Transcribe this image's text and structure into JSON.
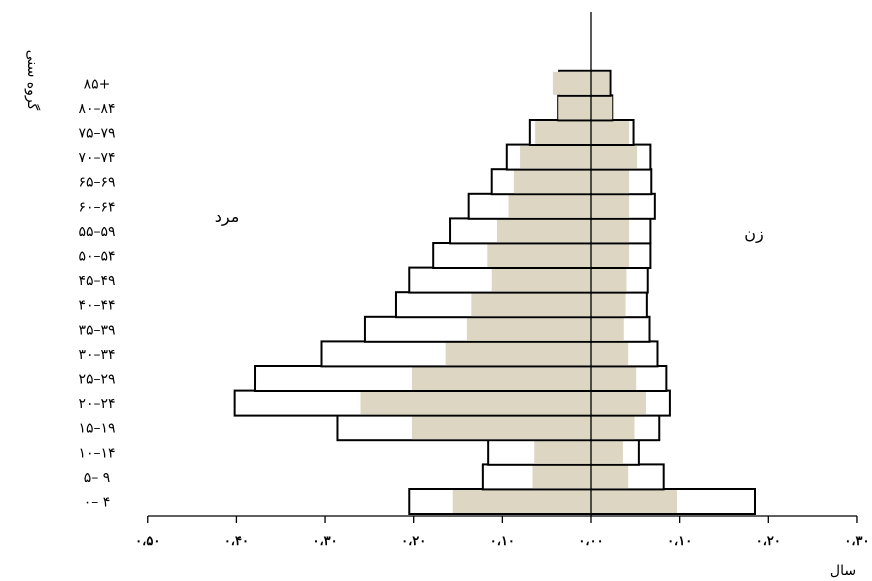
{
  "chart_data": {
    "type": "bar",
    "orientation": "horizontal",
    "xlabel": "سال",
    "ylabel": "گروه سنی",
    "annotations": {
      "left": "مرد",
      "right": "زن"
    },
    "xlim": [
      -0.5,
      0.3
    ],
    "x_ticks": [
      -0.5,
      -0.4,
      -0.3,
      -0.2,
      -0.1,
      0,
      0.1,
      0.2,
      0.3
    ],
    "x_tick_labels": [
      "۰،۵۰",
      "۰،۴۰",
      "۰،۳۰",
      "۰،۲۰",
      "۰،۱۰",
      "۰،۰۰",
      "۰،۱۰",
      "۰،۲۰",
      "۰،۳۰"
    ],
    "categories": [
      "۰– ۴",
      "۵– ۹",
      "۱۰–۱۴",
      "۱۵–۱۹",
      "۲۰–۲۴",
      "۲۵–۲۹",
      "۳۰–۳۴",
      "۳۵–۳۹",
      "۴۰–۴۴",
      "۴۵–۴۹",
      "۵۰–۵۴",
      "۵۵–۵۹",
      "۶۰–۶۴",
      "۶۵–۶۹",
      "۷۰–۷۴",
      "۷۵–۷۹",
      "۸۰–۸۴",
      "۸۵+"
    ],
    "series": [
      {
        "group": "outline",
        "male": [
          0.205,
          0.122,
          0.116,
          0.286,
          0.402,
          0.379,
          0.304,
          0.255,
          0.22,
          0.205,
          0.178,
          0.159,
          0.138,
          0.112,
          0.095,
          0.069,
          0.037,
          0.036
        ],
        "female": [
          0.185,
          0.082,
          0.054,
          0.077,
          0.089,
          0.085,
          0.075,
          0.066,
          0.063,
          0.064,
          0.067,
          0.067,
          0.072,
          0.068,
          0.067,
          0.048,
          0.024,
          0.022
        ]
      },
      {
        "group": "shaded",
        "male": [
          0.156,
          0.066,
          0.064,
          0.202,
          0.26,
          0.202,
          0.164,
          0.14,
          0.135,
          0.112,
          0.117,
          0.106,
          0.093,
          0.087,
          0.08,
          0.063,
          0.037,
          0.043
        ],
        "female": [
          0.097,
          0.042,
          0.036,
          0.049,
          0.062,
          0.051,
          0.042,
          0.037,
          0.039,
          0.04,
          0.043,
          0.043,
          0.043,
          0.043,
          0.052,
          0.043,
          0.024,
          0.021
        ]
      }
    ],
    "colors": {
      "shaded": "#dcd6c3",
      "outline": "#000000"
    },
    "grid": false,
    "legend": "none"
  }
}
